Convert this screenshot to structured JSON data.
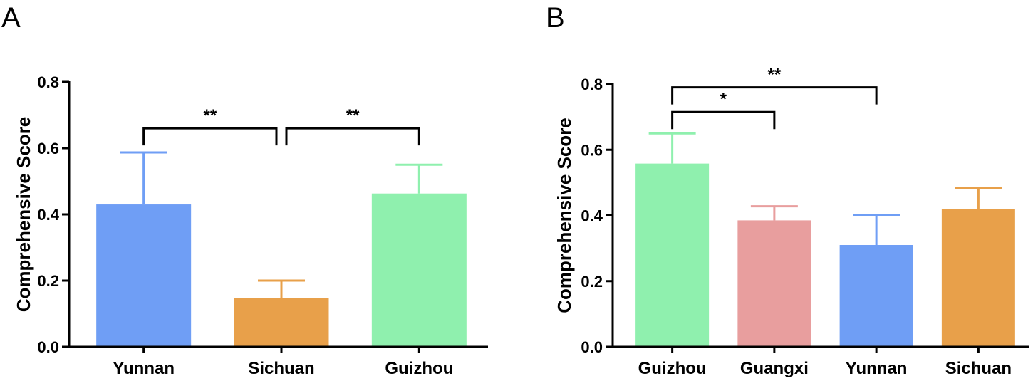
{
  "chart_data": [
    {
      "type": "bar",
      "panel": "A",
      "ylabel": "Comprehensive Score",
      "ylim": [
        0,
        0.8
      ],
      "yticks": [
        "0.0",
        "0.2",
        "0.4",
        "0.6",
        "0.8"
      ],
      "categories": [
        "Yunnan",
        "Sichuan",
        "Guizhou"
      ],
      "values": [
        0.43,
        0.147,
        0.463
      ],
      "errors": [
        0.157,
        0.053,
        0.087
      ],
      "colors": [
        "#6f9ef5",
        "#e8a04a",
        "#8ff0ae"
      ],
      "errorbar_colors": [
        "#6f9ef5",
        "#e8a04a",
        "#8ff0ae"
      ],
      "significance": [
        {
          "from": 0,
          "to": 1,
          "label": "**",
          "y": 0.66,
          "split": "left"
        },
        {
          "from": 1,
          "to": 2,
          "label": "**",
          "y": 0.66,
          "split": "right"
        }
      ]
    },
    {
      "type": "bar",
      "panel": "B",
      "ylabel": "Comprehensive Score",
      "ylim": [
        0,
        0.8
      ],
      "yticks": [
        "0.0",
        "0.2",
        "0.4",
        "0.6",
        "0.8"
      ],
      "categories": [
        "Guizhou",
        "Guangxi",
        "Yunnan",
        "Sichuan"
      ],
      "values": [
        0.558,
        0.385,
        0.31,
        0.42
      ],
      "errors": [
        0.092,
        0.043,
        0.092,
        0.063
      ],
      "colors": [
        "#8ff0ae",
        "#e89e9e",
        "#6f9ef5",
        "#e8a04a"
      ],
      "errorbar_colors": [
        "#8ff0ae",
        "#e89e9e",
        "#6f9ef5",
        "#e8a04a"
      ],
      "significance": [
        {
          "from": 0,
          "to": 1,
          "label": "*",
          "y": 0.715
        },
        {
          "from": 0,
          "to": 2,
          "label": "**",
          "y": 0.79
        }
      ]
    }
  ]
}
